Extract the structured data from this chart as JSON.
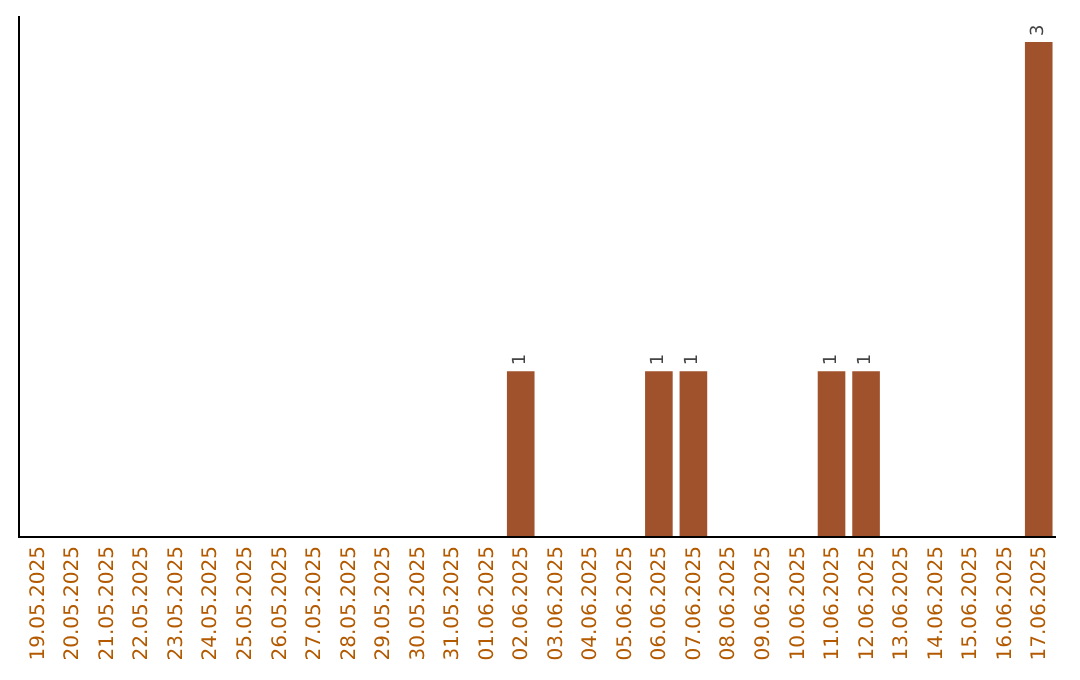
{
  "chart_data": {
    "type": "bar",
    "categories": [
      "19.05.2025",
      "20.05.2025",
      "21.05.2025",
      "22.05.2025",
      "23.05.2025",
      "24.05.2025",
      "25.05.2025",
      "26.05.2025",
      "27.05.2025",
      "28.05.2025",
      "29.05.2025",
      "30.05.2025",
      "31.05.2025",
      "01.06.2025",
      "02.06.2025",
      "03.06.2025",
      "04.06.2025",
      "05.06.2025",
      "06.06.2025",
      "07.06.2025",
      "08.06.2025",
      "09.06.2025",
      "10.06.2025",
      "11.06.2025",
      "12.06.2025",
      "13.06.2025",
      "14.06.2025",
      "15.06.2025",
      "16.06.2025",
      "17.06.2025"
    ],
    "values": [
      null,
      null,
      null,
      null,
      null,
      null,
      null,
      null,
      null,
      null,
      null,
      null,
      null,
      null,
      1,
      null,
      null,
      null,
      1,
      1,
      null,
      null,
      null,
      1,
      1,
      null,
      null,
      null,
      null,
      3
    ],
    "value_labels": [
      null,
      null,
      null,
      null,
      null,
      null,
      null,
      null,
      null,
      null,
      null,
      null,
      null,
      null,
      "1",
      null,
      null,
      null,
      "1",
      "1",
      null,
      null,
      null,
      "1",
      "1",
      null,
      null,
      null,
      null,
      "3"
    ],
    "color": "#a0522d",
    "tick_labels": "x",
    "legend": false
  }
}
